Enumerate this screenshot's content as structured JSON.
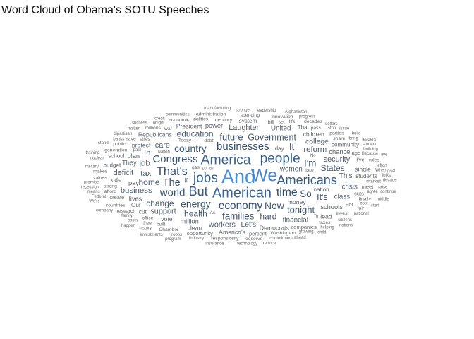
{
  "chart_data": {
    "type": "word_cloud",
    "title": "Word Cloud of Obama's SOTU Speeches",
    "color_scale": {
      "low": "#6b6b6b",
      "mid": "#2f4d6e",
      "high": "#4a90d9"
    },
    "words": [
      {
        "text": "And",
        "weight": 100
      },
      {
        "text": "We",
        "weight": 92
      },
      {
        "text": "American",
        "weight": 66
      },
      {
        "text": "America",
        "weight": 64
      },
      {
        "text": "jobs",
        "weight": 62
      },
      {
        "text": "people",
        "weight": 62
      },
      {
        "text": "Americans",
        "weight": 58
      },
      {
        "text": "But",
        "weight": 58
      },
      {
        "text": "That's",
        "weight": 50
      },
      {
        "text": "time",
        "weight": 48
      },
      {
        "text": "economy",
        "weight": 46
      },
      {
        "text": "businesses",
        "weight": 44
      },
      {
        "text": "Congress",
        "weight": 44
      },
      {
        "text": "world",
        "weight": 44
      },
      {
        "text": "The",
        "weight": 42
      },
      {
        "text": "energy",
        "weight": 40
      },
      {
        "text": "country",
        "weight": 40
      },
      {
        "text": "Now",
        "weight": 40
      },
      {
        "text": "families",
        "weight": 38
      },
      {
        "text": "I'm",
        "weight": 38
      },
      {
        "text": "So",
        "weight": 38
      },
      {
        "text": "It",
        "weight": 36
      },
      {
        "text": "future",
        "weight": 36
      },
      {
        "text": "tonight",
        "weight": 36
      },
      {
        "text": "It's",
        "weight": 34
      },
      {
        "text": "Government",
        "weight": 34
      },
      {
        "text": "health",
        "weight": 32
      },
      {
        "text": "home",
        "weight": 32
      },
      {
        "text": "hard",
        "weight": 32
      },
      {
        "text": "change",
        "weight": 32
      },
      {
        "text": "States",
        "weight": 32
      },
      {
        "text": "education",
        "weight": 32
      },
      {
        "text": "reform",
        "weight": 30
      },
      {
        "text": "business",
        "weight": 30
      },
      {
        "text": "tax",
        "weight": 30
      },
      {
        "text": "job",
        "weight": 30
      },
      {
        "text": "In",
        "weight": 30
      },
      {
        "text": "security",
        "weight": 28
      },
      {
        "text": "care",
        "weight": 28
      },
      {
        "text": "Laughter",
        "weight": 28
      },
      {
        "text": "workers",
        "weight": 28
      },
      {
        "text": "support",
        "weight": 28
      },
      {
        "text": "deficit",
        "weight": 28
      },
      {
        "text": "college",
        "weight": 26
      },
      {
        "text": "Let's",
        "weight": 26
      },
      {
        "text": "financial",
        "weight": 24
      },
      {
        "text": "women",
        "weight": 24
      },
      {
        "text": "This",
        "weight": 24
      },
      {
        "text": "crisis",
        "weight": 24
      },
      {
        "text": "United",
        "weight": 24
      },
      {
        "text": "class",
        "weight": 24
      },
      {
        "text": "million",
        "weight": 22
      },
      {
        "text": "pay",
        "weight": 22
      },
      {
        "text": "power",
        "weight": 22
      },
      {
        "text": "chance",
        "weight": 22
      },
      {
        "text": "They",
        "weight": 22
      },
      {
        "text": "lives",
        "weight": 22
      },
      {
        "text": "schools",
        "weight": 22
      },
      {
        "text": "plan",
        "weight": 22
      },
      {
        "text": "protect",
        "weight": 20
      },
      {
        "text": "Republicans",
        "weight": 20
      },
      {
        "text": "America's",
        "weight": 20
      },
      {
        "text": "Democrats",
        "weight": 20
      },
      {
        "text": "vote",
        "weight": 20
      },
      {
        "text": "money",
        "weight": 20
      },
      {
        "text": "children",
        "weight": 20
      },
      {
        "text": "President",
        "weight": 20
      },
      {
        "text": "clean",
        "weight": 20
      },
      {
        "text": "single",
        "weight": 20
      },
      {
        "text": "lead",
        "weight": 20
      },
      {
        "text": "kids",
        "weight": 18
      },
      {
        "text": "students",
        "weight": 18
      },
      {
        "text": "day",
        "weight": 18
      },
      {
        "text": "Our",
        "weight": 18
      },
      {
        "text": "system",
        "weight": 18
      },
      {
        "text": "community",
        "weight": 18
      },
      {
        "text": "nation",
        "weight": 18
      },
      {
        "text": "That",
        "weight": 18
      },
      {
        "text": "school",
        "weight": 18
      },
      {
        "text": "If",
        "weight": 18
      },
      {
        "text": "cut",
        "weight": 18
      },
      {
        "text": "budget",
        "weight": 18
      },
      {
        "text": "century",
        "weight": 16
      },
      {
        "text": "ago",
        "weight": 16
      },
      {
        "text": "For",
        "weight": 16
      },
      {
        "text": "percent",
        "weight": 16
      },
      {
        "text": "law",
        "weight": 16
      },
      {
        "text": "bill",
        "weight": 16
      },
      {
        "text": "opportunity",
        "weight": 16
      },
      {
        "text": "meet",
        "weight": 16
      },
      {
        "text": "create",
        "weight": 16
      },
      {
        "text": "companies",
        "weight": 16
      },
      {
        "text": "I've",
        "weight": 16
      },
      {
        "text": "cuts",
        "weight": 16
      },
      {
        "text": "Today",
        "weight": 14
      },
      {
        "text": "war",
        "weight": 14
      },
      {
        "text": "set",
        "weight": 14
      },
      {
        "text": "office",
        "weight": 14
      },
      {
        "text": "Washington",
        "weight": 14
      },
      {
        "text": "built",
        "weight": 14
      },
      {
        "text": "politics",
        "weight": 14
      },
      {
        "text": "finally",
        "weight": 14
      },
      {
        "text": "invest",
        "weight": 14
      },
      {
        "text": "strong",
        "weight": 14
      },
      {
        "text": "afford",
        "weight": 14
      },
      {
        "text": "Chamber",
        "weight": 14
      },
      {
        "text": "market",
        "weight": 14
      },
      {
        "text": "pass",
        "weight": 14
      },
      {
        "text": "generation",
        "weight": 14
      },
      {
        "text": "research",
        "weight": 14
      },
      {
        "text": "values",
        "weight": 14
      },
      {
        "text": "millions",
        "weight": 14
      },
      {
        "text": "countries",
        "weight": 14
      },
      {
        "text": "debt",
        "weight": 14
      },
      {
        "text": "share",
        "weight": 14
      },
      {
        "text": "spending",
        "weight": 14
      },
      {
        "text": "innovation",
        "weight": 14
      },
      {
        "text": "responsibility",
        "weight": 14
      },
      {
        "text": "free",
        "weight": 14
      },
      {
        "text": "makes",
        "weight": 14
      },
      {
        "text": "taxes",
        "weight": 14
      },
      {
        "text": "life",
        "weight": 14
      },
      {
        "text": "public",
        "weight": 14
      },
      {
        "text": "economic",
        "weight": 14
      },
      {
        "text": "administration",
        "weight": 14
      },
      {
        "text": "parties",
        "weight": 14
      },
      {
        "text": "save",
        "weight": 14
      },
      {
        "text": "rules",
        "weight": 14
      },
      {
        "text": "decades",
        "weight": 14
      },
      {
        "text": "gas",
        "weight": 14
      },
      {
        "text": "fair",
        "weight": 14
      },
      {
        "text": "deserve",
        "weight": 14
      },
      {
        "text": "As",
        "weight": 14
      },
      {
        "text": "oil",
        "weight": 12
      },
      {
        "text": "Because",
        "weight": 12
      },
      {
        "text": "agree",
        "weight": 12
      },
      {
        "text": "family",
        "weight": 12
      },
      {
        "text": "cost",
        "weight": 12
      },
      {
        "text": "bring",
        "weight": 12
      },
      {
        "text": "No",
        "weight": 12
      },
      {
        "text": "When",
        "weight": 12
      },
      {
        "text": "Tonight",
        "weight": 12
      },
      {
        "text": "citizens",
        "weight": 12
      },
      {
        "text": "allies",
        "weight": 12
      },
      {
        "text": "commitment",
        "weight": 12
      },
      {
        "text": "building",
        "weight": 12
      },
      {
        "text": "effort",
        "weight": 12
      },
      {
        "text": "stop",
        "weight": 12
      },
      {
        "text": "growing",
        "weight": 12
      },
      {
        "text": "national",
        "weight": 12
      },
      {
        "text": "helping",
        "weight": 12
      },
      {
        "text": "Federal",
        "weight": 12
      },
      {
        "text": "nuclear",
        "weight": 12
      },
      {
        "text": "costs",
        "weight": 12
      },
      {
        "text": "military",
        "weight": 12
      },
      {
        "text": "To",
        "weight": 12
      },
      {
        "text": "industry",
        "weight": 12
      },
      {
        "text": "stronger",
        "weight": 12
      },
      {
        "text": "promise",
        "weight": 12
      },
      {
        "text": "troops",
        "weight": 12
      },
      {
        "text": "history",
        "weight": 12
      },
      {
        "text": "bipartisan",
        "weight": 12
      },
      {
        "text": "raise",
        "weight": 12
      },
      {
        "text": "banks",
        "weight": 12
      },
      {
        "text": "recession",
        "weight": 12
      },
      {
        "text": "leadership",
        "weight": 12
      },
      {
        "text": "technology",
        "weight": 12
      },
      {
        "text": "student",
        "weight": 12
      },
      {
        "text": "dollars",
        "weight": 12
      },
      {
        "text": "communities",
        "weight": 12
      },
      {
        "text": "folks",
        "weight": 12
      },
      {
        "text": "progress",
        "weight": 12
      },
      {
        "text": "ahead",
        "weight": 12
      },
      {
        "text": "insurance",
        "weight": 12
      },
      {
        "text": "middle",
        "weight": 12
      },
      {
        "text": "manufacturing",
        "weight": 12
      },
      {
        "text": "investments",
        "weight": 12
      },
      {
        "text": "Afghanistan",
        "weight": 12
      },
      {
        "text": "start",
        "weight": 12
      },
      {
        "text": "decade",
        "weight": 12
      },
      {
        "text": "child",
        "weight": 12
      },
      {
        "text": "Nation",
        "weight": 12
      },
      {
        "text": "credit",
        "weight": 12
      },
      {
        "text": "10",
        "weight": 12
      },
      {
        "text": "reduce",
        "weight": 12
      },
      {
        "text": "past",
        "weight": 12
      },
      {
        "text": "matter",
        "weight": 12
      },
      {
        "text": "means",
        "weight": 12
      },
      {
        "text": "nations",
        "weight": 12
      },
      {
        "text": "success",
        "weight": 12
      },
      {
        "text": "stand",
        "weight": 12
      },
      {
        "text": "build",
        "weight": 12
      },
      {
        "text": "continue",
        "weight": 12
      },
      {
        "text": "issue",
        "weight": 12
      },
      {
        "text": "leaders",
        "weight": 12
      },
      {
        "text": "program",
        "weight": 12
      },
      {
        "text": "company",
        "weight": 12
      },
      {
        "text": "goal",
        "weight": 12
      },
      {
        "text": "training",
        "weight": 12
      },
      {
        "text": "We're",
        "weight": 12
      },
      {
        "text": "happen",
        "weight": 12
      },
      {
        "text": "live",
        "weight": 12
      }
    ]
  }
}
